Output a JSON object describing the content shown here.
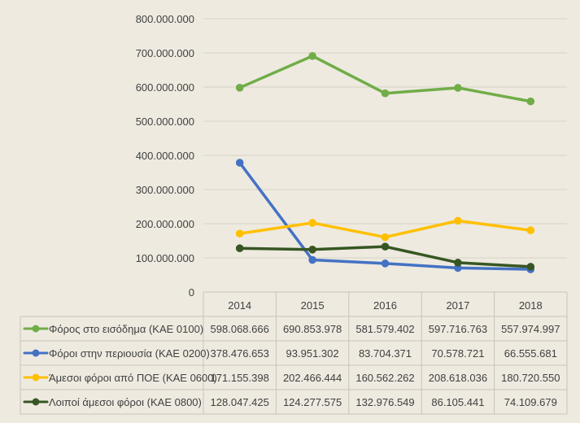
{
  "chart_data": {
    "type": "line",
    "title": "",
    "xlabel": "",
    "ylabel": "",
    "x": [
      "2014",
      "2015",
      "2016",
      "2017",
      "2018"
    ],
    "ylim": [
      0,
      800000000
    ],
    "yticks": [
      0,
      100000000,
      200000000,
      300000000,
      400000000,
      500000000,
      600000000,
      700000000,
      800000000
    ],
    "ytick_labels": [
      "0",
      "100.000.000",
      "200.000.000",
      "300.000.000",
      "400.000.000",
      "500.000.000",
      "600.000.000",
      "700.000.000",
      "800.000.000"
    ],
    "grid": true,
    "legend": "data-table-below",
    "series": [
      {
        "name": "Φόρος στο εισόδημα  (ΚΑΕ 0100)",
        "color": "#70ad47",
        "values": [
          598068666,
          690853978,
          581579402,
          597716763,
          557974997
        ],
        "labels": [
          "598.068.666",
          "690.853.978",
          "581.579.402",
          "597.716.763",
          "557.974.997"
        ]
      },
      {
        "name": "Φόροι στην περιουσία (ΚΑΕ 0200)",
        "color": "#4472c4",
        "values": [
          378476653,
          93951302,
          83704371,
          70578721,
          66555681
        ],
        "labels": [
          "378.476.653",
          "93.951.302",
          "83.704.371",
          "70.578.721",
          "66.555.681"
        ]
      },
      {
        "name": "Άμεσοι φόροι από ΠΟΕ (ΚΑΕ 0600)",
        "color": "#ffc000",
        "values": [
          171155398,
          202466444,
          160562262,
          208618036,
          180720550
        ],
        "labels": [
          "171.155.398",
          "202.466.444",
          "160.562.262",
          "208.618.036",
          "180.720.550"
        ]
      },
      {
        "name": "Λοιποί άμεσοι φόροι (ΚΑΕ 0800)",
        "color": "#375623",
        "values": [
          128047425,
          124277575,
          132976549,
          86105441,
          74109679
        ],
        "labels": [
          "128.047.425",
          "124.277.575",
          "132.976.549",
          "86.105.441",
          "74.109.679"
        ]
      }
    ]
  }
}
